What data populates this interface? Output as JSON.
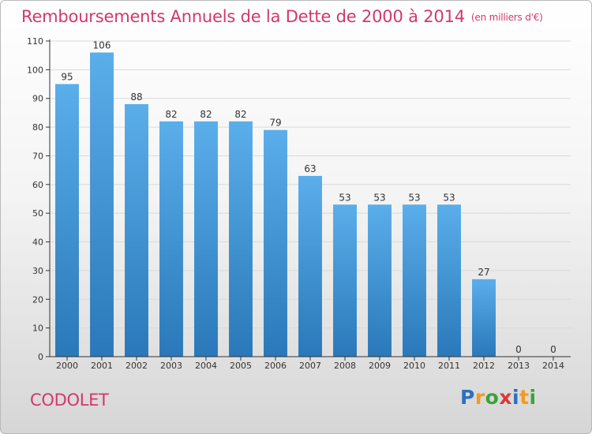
{
  "header": {
    "title": "Remboursements Annuels de la Dette de 2000 à 2014",
    "unit": "(en milliers d'€)"
  },
  "footer": {
    "place": "CODOLET",
    "brand": "Proxiti"
  },
  "colors": {
    "title": "#d2386a",
    "bar_top": "#5aaeea",
    "bar_bottom": "#2a78b9",
    "axis": "#333333",
    "grid": "#d9d9d9"
  },
  "chart_data": {
    "type": "bar",
    "title": "Remboursements Annuels de la Dette de 2000 à 2014",
    "subtitle": "(en milliers d'€)",
    "categories": [
      "2000",
      "2001",
      "2002",
      "2003",
      "2004",
      "2005",
      "2006",
      "2007",
      "2008",
      "2009",
      "2010",
      "2011",
      "2012",
      "2013",
      "2014"
    ],
    "values": [
      95,
      106,
      88,
      82,
      82,
      82,
      79,
      63,
      53,
      53,
      53,
      53,
      27,
      0,
      0
    ],
    "ylim": [
      0,
      110
    ],
    "yticks": [
      0,
      10,
      20,
      30,
      40,
      50,
      60,
      70,
      80,
      90,
      100,
      110
    ],
    "grid": true,
    "legend": "none",
    "data_labels": true
  }
}
